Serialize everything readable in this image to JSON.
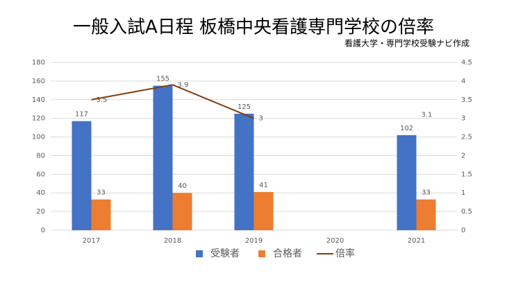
{
  "chart_data": {
    "type": "bar",
    "title": "一般入試A日程 板橋中央看護専門学校の倍率",
    "subtitle": "看護大学・専門学校受験ナビ作成",
    "categories": [
      "2017",
      "2018",
      "2019",
      "2020",
      "2021"
    ],
    "series": [
      {
        "name": "受験者",
        "color": "#4472c4",
        "values": [
          117,
          155,
          125,
          null,
          102
        ]
      },
      {
        "name": "合格者",
        "color": "#ed7d31",
        "values": [
          33,
          40,
          41,
          null,
          33
        ]
      },
      {
        "name": "倍率",
        "color": "#843c0c",
        "type": "line",
        "axis": "y2",
        "values": [
          3.5,
          3.9,
          3,
          null,
          3.1
        ]
      }
    ],
    "ylim": [
      0,
      180
    ],
    "yticks": [
      0,
      20,
      40,
      60,
      80,
      100,
      120,
      140,
      160,
      180
    ],
    "y2lim": [
      0,
      4.5
    ],
    "y2ticks": [
      0,
      0.5,
      1,
      1.5,
      2,
      2.5,
      3,
      3.5,
      4,
      4.5
    ],
    "grid": true,
    "legend": "bottom"
  }
}
